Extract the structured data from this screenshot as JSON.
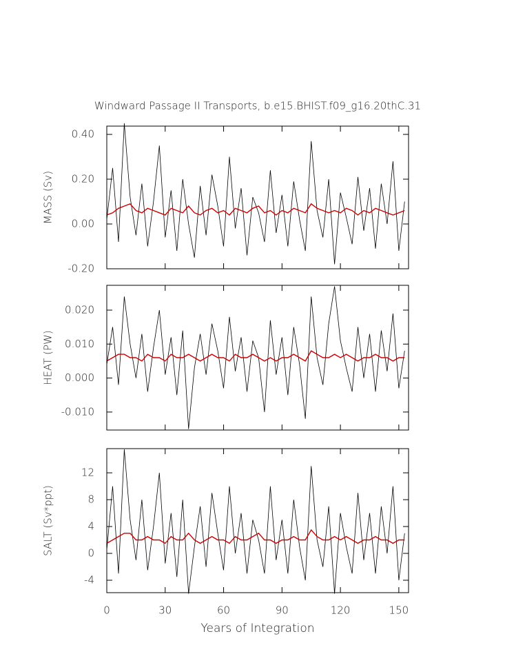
{
  "chart_data": [
    {
      "type": "line",
      "title": "Windward Passage II Transports, b.e15.BHIST.f09_g16.20thC.31",
      "ylabel": "MASS (Sv)",
      "x": [
        0,
        3,
        6,
        9,
        12,
        15,
        18,
        21,
        24,
        27,
        30,
        33,
        36,
        39,
        42,
        45,
        48,
        51,
        54,
        57,
        60,
        63,
        66,
        69,
        72,
        75,
        78,
        81,
        84,
        87,
        90,
        93,
        96,
        99,
        102,
        105,
        108,
        111,
        114,
        117,
        120,
        123,
        126,
        129,
        132,
        135,
        138,
        141,
        144,
        147,
        150,
        153
      ],
      "xlim": [
        0,
        155
      ],
      "xticks": [
        0,
        30,
        60,
        90,
        120,
        150
      ],
      "ylim": [
        -0.2,
        0.437
      ],
      "yticks": [
        {
          "value": -0.2,
          "label": "-0.20"
        },
        {
          "value": 0,
          "label": "0.00"
        },
        {
          "value": 0.2,
          "label": "0.20"
        },
        {
          "value": 0.4,
          "label": "0.40"
        }
      ],
      "series": [
        {
          "color": "#000000",
          "values": [
            0.02,
            0.25,
            -0.08,
            0.45,
            0.12,
            -0.05,
            0.18,
            -0.1,
            0.1,
            0.35,
            -0.06,
            0.15,
            -0.12,
            0.2,
            0.0,
            -0.15,
            0.17,
            -0.05,
            0.22,
            0.08,
            -0.1,
            0.3,
            -0.02,
            0.16,
            -0.14,
            0.12,
            0.05,
            -0.08,
            0.24,
            -0.04,
            0.13,
            -0.1,
            0.19,
            0.02,
            -0.12,
            0.37,
            0.06,
            -0.06,
            0.2,
            -0.18,
            0.14,
            0.03,
            -0.09,
            0.21,
            -0.03,
            0.16,
            -0.11,
            0.18,
            0.0,
            0.28,
            -0.12,
            0.1
          ]
        },
        {
          "color": "#cc0000",
          "values": [
            0.04,
            0.05,
            0.07,
            0.08,
            0.09,
            0.06,
            0.05,
            0.07,
            0.06,
            0.05,
            0.04,
            0.07,
            0.06,
            0.05,
            0.08,
            0.05,
            0.04,
            0.06,
            0.07,
            0.05,
            0.06,
            0.04,
            0.07,
            0.06,
            0.05,
            0.07,
            0.08,
            0.05,
            0.06,
            0.04,
            0.06,
            0.05,
            0.07,
            0.06,
            0.05,
            0.09,
            0.07,
            0.06,
            0.05,
            0.06,
            0.05,
            0.07,
            0.06,
            0.04,
            0.06,
            0.05,
            0.07,
            0.06,
            0.05,
            0.04,
            0.05,
            0.06
          ]
        }
      ]
    },
    {
      "type": "line",
      "ylabel": "HEAT (PW)",
      "x": [
        0,
        3,
        6,
        9,
        12,
        15,
        18,
        21,
        24,
        27,
        30,
        33,
        36,
        39,
        42,
        45,
        48,
        51,
        54,
        57,
        60,
        63,
        66,
        69,
        72,
        75,
        78,
        81,
        84,
        87,
        90,
        93,
        96,
        99,
        102,
        105,
        108,
        111,
        114,
        117,
        120,
        123,
        126,
        129,
        132,
        135,
        138,
        141,
        144,
        147,
        150,
        153
      ],
      "xlim": [
        0,
        155
      ],
      "xticks": [
        0,
        30,
        60,
        90,
        120,
        150
      ],
      "ylim": [
        -0.0153,
        0.0273
      ],
      "yticks": [
        {
          "value": -0.01,
          "label": "-0.010"
        },
        {
          "value": 0,
          "label": "0.000"
        },
        {
          "value": 0.01,
          "label": "0.010"
        },
        {
          "value": 0.02,
          "label": "0.020"
        }
      ],
      "series": [
        {
          "color": "#000000",
          "values": [
            0.004,
            0.015,
            -0.002,
            0.024,
            0.01,
            0.0,
            0.013,
            -0.004,
            0.009,
            0.02,
            0.001,
            0.012,
            -0.005,
            0.014,
            -0.015,
            0.003,
            0.013,
            0.001,
            0.016,
            0.008,
            -0.003,
            0.018,
            0.002,
            0.012,
            -0.004,
            0.011,
            0.006,
            -0.01,
            0.017,
            0.001,
            0.012,
            -0.005,
            0.015,
            0.004,
            -0.012,
            0.024,
            0.006,
            -0.002,
            0.016,
            0.027,
            0.011,
            0.003,
            -0.004,
            0.015,
            0.0,
            0.013,
            -0.004,
            0.014,
            0.002,
            0.019,
            -0.003,
            0.008
          ]
        },
        {
          "color": "#cc0000",
          "values": [
            0.005,
            0.006,
            0.007,
            0.007,
            0.006,
            0.006,
            0.005,
            0.007,
            0.006,
            0.006,
            0.005,
            0.007,
            0.006,
            0.006,
            0.007,
            0.006,
            0.005,
            0.006,
            0.007,
            0.006,
            0.006,
            0.005,
            0.007,
            0.006,
            0.006,
            0.007,
            0.006,
            0.005,
            0.006,
            0.005,
            0.006,
            0.006,
            0.007,
            0.006,
            0.005,
            0.008,
            0.007,
            0.006,
            0.006,
            0.007,
            0.006,
            0.007,
            0.006,
            0.005,
            0.006,
            0.006,
            0.007,
            0.006,
            0.006,
            0.005,
            0.006,
            0.006
          ]
        }
      ]
    },
    {
      "type": "line",
      "ylabel": "SALT (Sv*ppt)",
      "xlabel": "Years of Integration",
      "x": [
        0,
        3,
        6,
        9,
        12,
        15,
        18,
        21,
        24,
        27,
        30,
        33,
        36,
        39,
        42,
        45,
        48,
        51,
        54,
        57,
        60,
        63,
        66,
        69,
        72,
        75,
        78,
        81,
        84,
        87,
        90,
        93,
        96,
        99,
        102,
        105,
        108,
        111,
        114,
        117,
        120,
        123,
        126,
        129,
        132,
        135,
        138,
        141,
        144,
        147,
        150,
        153
      ],
      "xlim": [
        0,
        155
      ],
      "xticks": [
        0,
        30,
        60,
        90,
        120,
        150
      ],
      "ylim": [
        -5.85,
        15.6
      ],
      "yticks": [
        -4,
        0,
        4,
        8,
        12
      ],
      "series": [
        {
          "color": "#000000",
          "values": [
            0.5,
            10,
            -3,
            15.5,
            5,
            -1,
            8,
            -2.5,
            4,
            12,
            -1.5,
            6,
            -3.5,
            8,
            -6,
            1,
            7,
            -2,
            9,
            3,
            -2.5,
            10,
            0,
            6,
            -3,
            5,
            2,
            -3,
            10,
            -1,
            5,
            -3,
            8,
            1,
            -4,
            13,
            2,
            -2,
            7,
            -6,
            6,
            1,
            -3,
            9,
            -1,
            6,
            -3,
            7,
            0,
            10,
            -4,
            3
          ]
        },
        {
          "color": "#cc0000",
          "values": [
            1.5,
            2,
            2.5,
            3,
            3,
            2,
            2,
            2.5,
            2,
            2,
            1.5,
            2.5,
            2,
            2,
            3,
            2,
            1.5,
            2,
            2.5,
            2,
            2,
            1.5,
            2.5,
            2,
            2,
            2.5,
            3,
            2,
            2,
            1.5,
            2,
            2,
            2.5,
            2,
            2,
            3.5,
            2.5,
            2,
            2,
            2.5,
            2,
            2.5,
            2,
            1.5,
            2,
            2,
            2.5,
            2,
            2,
            1.5,
            2,
            2
          ]
        }
      ]
    }
  ]
}
